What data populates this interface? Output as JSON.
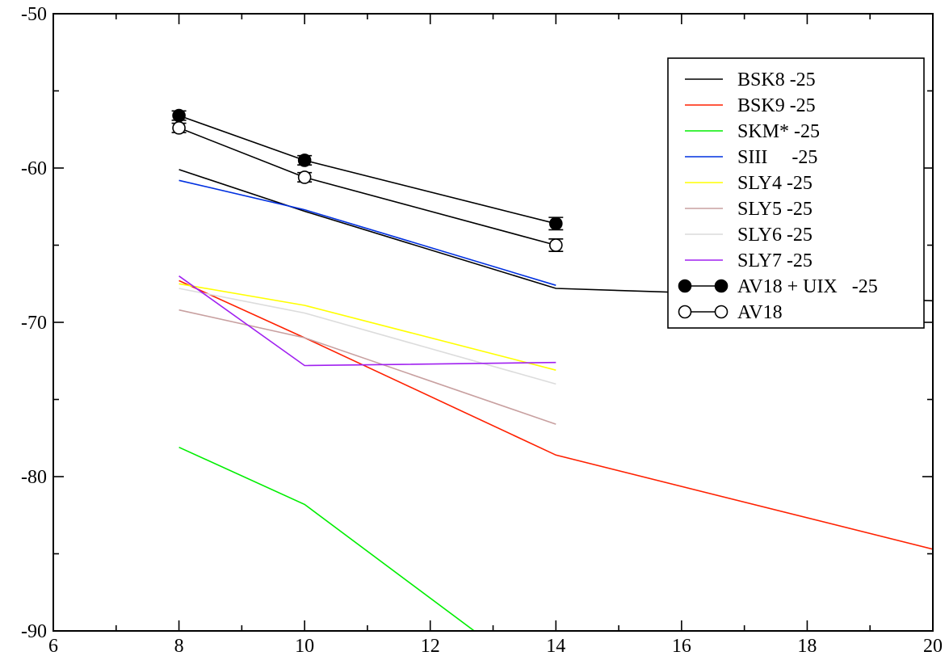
{
  "chart_data": {
    "type": "line",
    "title": "",
    "xlabel": "",
    "ylabel": "",
    "xlim": [
      6,
      20
    ],
    "ylim": [
      -90,
      -50
    ],
    "x_major_ticks": [
      6,
      8,
      10,
      12,
      14,
      16,
      18,
      20
    ],
    "x_tick_labels": [
      "6",
      "8",
      "10",
      "12",
      "14",
      "16",
      "18",
      "20"
    ],
    "y_major_ticks": [
      -90,
      -80,
      -70,
      -60,
      -50
    ],
    "y_tick_labels": [
      "-90",
      "-80",
      "-70",
      "-60",
      "-50"
    ],
    "grid": false,
    "legend_position": "top-right",
    "series": [
      {
        "name": "BSK8 -25",
        "color": "#000000",
        "style": "line",
        "x": [
          8,
          10,
          14,
          20
        ],
        "y": [
          -60.1,
          -62.8,
          -67.8,
          -68.6
        ]
      },
      {
        "name": "BSK9 -25",
        "color": "#ff2000",
        "style": "line",
        "x": [
          8,
          10,
          14,
          20
        ],
        "y": [
          -67.3,
          -71.0,
          -78.6,
          -84.7
        ]
      },
      {
        "name": "SKM* -25",
        "color": "#00ee00",
        "style": "line",
        "x": [
          8,
          10,
          12.7
        ],
        "y": [
          -78.1,
          -81.8,
          -90.0
        ]
      },
      {
        "name": "SIII     -25",
        "color": "#0030e0",
        "style": "line",
        "x": [
          8,
          10,
          14
        ],
        "y": [
          -60.8,
          -62.7,
          -67.6
        ]
      },
      {
        "name": "SLY4 -25",
        "color": "#ffff00",
        "style": "line",
        "x": [
          8,
          10,
          14
        ],
        "y": [
          -67.5,
          -68.9,
          -73.1
        ]
      },
      {
        "name": "SLY5 -25",
        "color": "#c8a0a0",
        "style": "line",
        "x": [
          8,
          10,
          14
        ],
        "y": [
          -69.2,
          -71.0,
          -76.6
        ]
      },
      {
        "name": "SLY6 -25",
        "color": "#dcdcdc",
        "style": "line",
        "x": [
          8,
          10,
          14
        ],
        "y": [
          -67.8,
          -69.4,
          -74.0
        ]
      },
      {
        "name": "SLY7 -25",
        "color": "#a020f0",
        "style": "line",
        "x": [
          8,
          10,
          14
        ],
        "y": [
          -67.0,
          -72.8,
          -72.6
        ]
      },
      {
        "name": "AV18 + UIX   -25",
        "color": "#000000",
        "style": "filled-markers",
        "x": [
          8,
          10,
          14
        ],
        "y": [
          -56.6,
          -59.5,
          -63.6
        ],
        "err": [
          0.3,
          0.3,
          0.4
        ]
      },
      {
        "name": "AV18",
        "color": "#000000",
        "style": "open-markers",
        "x": [
          8,
          10,
          14
        ],
        "y": [
          -57.4,
          -60.6,
          -65.0
        ],
        "err": [
          0.3,
          0.3,
          0.4
        ]
      }
    ]
  }
}
